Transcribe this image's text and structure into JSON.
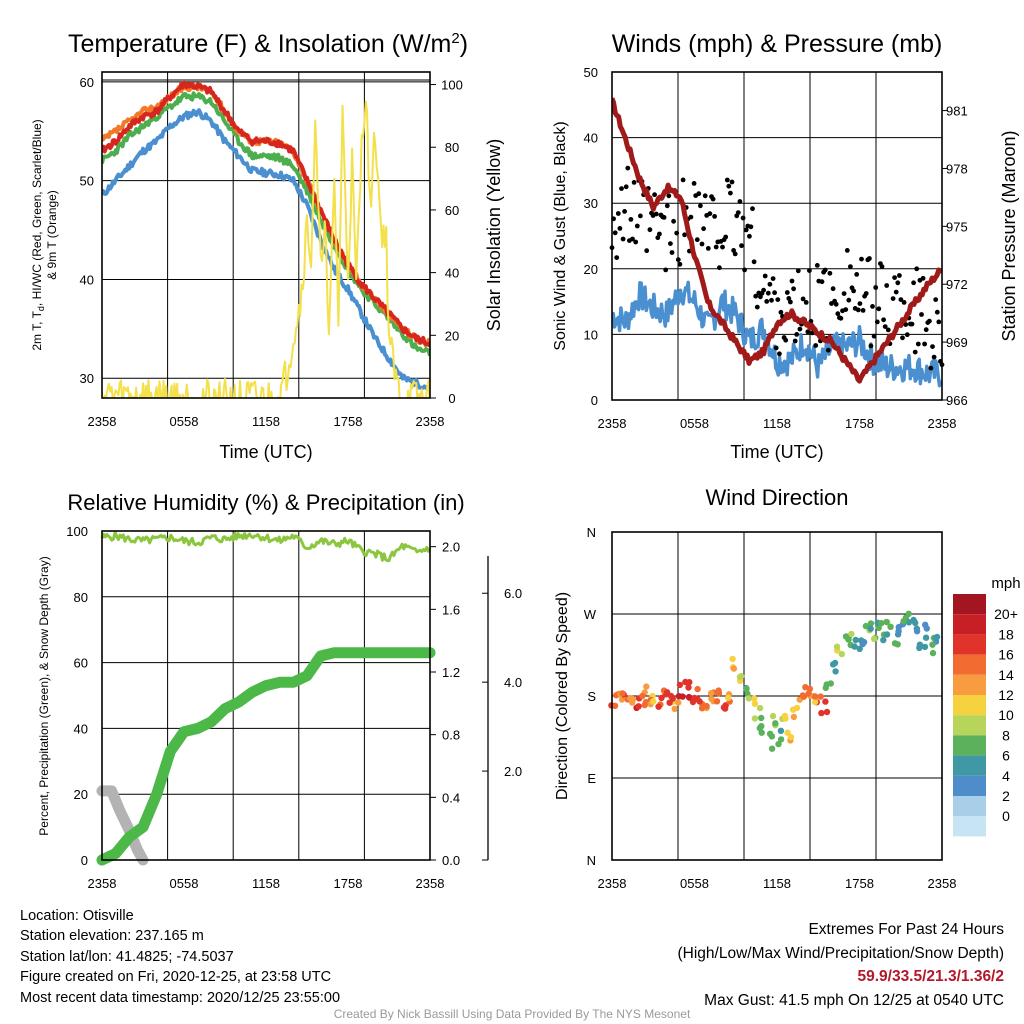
{
  "chart_data": [
    {
      "type": "line",
      "title": "Temperature (F) & Insolation (W/m²)",
      "xlabel": "Time (UTC)",
      "ylabel_lines": [
        "2m T, Tₙ, HI/WC (Red, Green, Scarlet/Blue)",
        "& 9m T (Orange)"
      ],
      "y2label": "Solar Insolation (Yellow)",
      "x_ticks": [
        "2358",
        "0558",
        "1158",
        "1758",
        "2358"
      ],
      "ylim": [
        28,
        61
      ],
      "y_ticks": [
        30,
        40,
        50,
        60
      ],
      "y2lim": [
        0,
        104
      ],
      "y2_ticks": [
        0,
        20,
        40,
        60,
        80,
        100
      ],
      "series": [
        {
          "color": "#4a8fd0",
          "x": [
            0,
            1,
            2,
            3,
            4,
            5,
            6,
            7,
            8,
            9,
            10,
            11,
            12,
            13,
            14,
            15,
            16,
            17,
            18,
            19,
            20,
            21,
            22,
            23,
            24
          ],
          "values": [
            48.5,
            50,
            51.5,
            53,
            54,
            55.5,
            56.5,
            57,
            56,
            54,
            52.5,
            51,
            50.8,
            50.6,
            50,
            47.5,
            44,
            41,
            39,
            36.5,
            34,
            32,
            30,
            29.5,
            29
          ]
        },
        {
          "color": "#4cae4c",
          "x": [
            0,
            1,
            2,
            3,
            4,
            5,
            6,
            7,
            8,
            9,
            10,
            11,
            12,
            13,
            14,
            15,
            16,
            17,
            18,
            19,
            20,
            21,
            22,
            23,
            24
          ],
          "values": [
            52,
            53,
            54.5,
            55.5,
            56.5,
            57.5,
            58.5,
            58.5,
            58,
            56,
            54,
            52.5,
            52.5,
            52.3,
            51.5,
            49,
            46,
            43.5,
            41,
            39,
            37.5,
            36,
            34.5,
            33,
            32.5
          ]
        },
        {
          "color": "#f07a28",
          "x": [
            0,
            1,
            2,
            3,
            4,
            5,
            6,
            7,
            8,
            9,
            10,
            11,
            12,
            13,
            14,
            15,
            16,
            17,
            18,
            19,
            20,
            21,
            22,
            23,
            24
          ],
          "values": [
            54,
            55,
            56,
            57,
            57.5,
            58.5,
            59.5,
            59.5,
            59,
            57,
            55,
            54,
            54,
            53.8,
            53,
            50,
            47,
            44,
            41.5,
            39.5,
            38,
            36.5,
            35,
            34,
            33.5
          ]
        },
        {
          "color": "#d7261e",
          "x": [
            0,
            1,
            2,
            3,
            4,
            5,
            6,
            7,
            8,
            9,
            10,
            11,
            12,
            13,
            14,
            15,
            16,
            17,
            18,
            19,
            20,
            21,
            22,
            23,
            24
          ],
          "values": [
            53,
            54,
            55.5,
            56.5,
            57,
            58.5,
            59.8,
            59.5,
            59,
            57,
            55,
            54,
            54,
            53.8,
            53,
            50,
            47,
            44,
            41.5,
            39.5,
            38,
            36.5,
            35,
            34,
            33.5
          ]
        },
        {
          "color": "#f3e04a",
          "axis": "right",
          "x": [
            0,
            12,
            13,
            13.5,
            14,
            14.5,
            15,
            15.3,
            15.6,
            16,
            16.3,
            16.6,
            17,
            17.3,
            17.6,
            18,
            18.3,
            18.6,
            19,
            19.3,
            19.6,
            20,
            20.4,
            20.8,
            21,
            21.5,
            22,
            24
          ],
          "values": [
            1,
            0,
            0,
            8,
            20,
            30,
            55,
            45,
            85,
            40,
            60,
            15,
            70,
            25,
            90,
            40,
            75,
            35,
            80,
            100,
            60,
            85,
            55,
            50,
            20,
            5,
            0,
            0
          ]
        }
      ]
    },
    {
      "type": "line",
      "title": "Winds (mph) & Pressure (mb)",
      "xlabel": "Time (UTC)",
      "ylabel": "Sonic Wind & Gust (Blue, Black)",
      "y2label": "Station Pressure (Maroon)",
      "x_ticks": [
        "2358",
        "0558",
        "1158",
        "1758",
        "2358"
      ],
      "ylim": [
        0,
        50
      ],
      "y_ticks": [
        0,
        10,
        20,
        30,
        40,
        50
      ],
      "y2lim": [
        966,
        983
      ],
      "y2_ticks": [
        966,
        969,
        972,
        975,
        978,
        981
      ],
      "series": [
        {
          "color": "#4a8fd0",
          "x": [
            0,
            1,
            2,
            3,
            4,
            5,
            6,
            7,
            8,
            9,
            10,
            11,
            12,
            13,
            14,
            15,
            16,
            17,
            18,
            19,
            20,
            21,
            22,
            23,
            24
          ],
          "values": [
            13,
            12,
            16,
            14,
            13,
            17,
            15,
            11,
            15,
            13,
            9,
            11,
            6,
            6,
            9,
            5,
            8,
            8,
            9,
            6,
            5,
            5,
            5,
            4,
            4
          ]
        },
        {
          "color": "#000000",
          "x": [
            0,
            1,
            2,
            3,
            4,
            5,
            6,
            7,
            8,
            9,
            10,
            11,
            12,
            13,
            14,
            15,
            16,
            17,
            18,
            19,
            20,
            21,
            22,
            23,
            24
          ],
          "values": [
            28,
            29,
            27,
            26,
            25,
            27,
            30,
            25,
            27,
            27,
            25,
            16,
            14,
            13,
            13,
            15,
            13,
            20,
            15,
            15,
            14,
            15,
            14,
            12,
            10
          ]
        },
        {
          "color": "#a11a1a",
          "axis": "right",
          "x": [
            0,
            1,
            2,
            3,
            4,
            5,
            6,
            7,
            8,
            9,
            10,
            11,
            12,
            13,
            14,
            15,
            16,
            17,
            18,
            19,
            20,
            21,
            22,
            23,
            24
          ],
          "values": [
            981.5,
            979.5,
            977.5,
            976,
            977,
            976.5,
            973.5,
            971,
            970,
            969,
            968,
            968.5,
            970,
            970.5,
            970,
            969.5,
            969,
            968,
            967,
            968,
            969,
            970,
            971,
            972,
            972.8
          ]
        }
      ]
    },
    {
      "type": "line",
      "title": "Relative Humidity (%) & Precipitation (in)",
      "ylabel": "Percent, Precipitation (Green), & Snow Depth (Gray)",
      "x_ticks": [
        "2358",
        "0558",
        "1158",
        "1758",
        "2358"
      ],
      "ylim": [
        0,
        100
      ],
      "y_ticks": [
        0,
        20,
        40,
        60,
        80,
        100
      ],
      "y2lim": [
        0,
        2.1
      ],
      "y2_ticks": [
        "0.0",
        "0.4",
        "0.8",
        "1.2",
        "1.6",
        "2.0"
      ],
      "y3_ticks": [
        "2.0",
        "4.0",
        "6.0"
      ],
      "series": [
        {
          "color": "#8cc63f",
          "x": [
            0,
            1,
            2,
            3,
            4,
            5,
            6,
            7,
            8,
            9,
            10,
            11,
            12,
            13,
            14,
            15,
            16,
            17,
            18,
            19,
            20,
            21,
            22,
            23,
            24
          ],
          "values": [
            98,
            98.5,
            97.5,
            97,
            97.5,
            98,
            97,
            96.5,
            98,
            97.5,
            98.5,
            99,
            98,
            97,
            98.5,
            95,
            97,
            96,
            97,
            94,
            93,
            91.5,
            95.5,
            93.5,
            95
          ]
        },
        {
          "color": "#4cb848",
          "x": [
            0,
            1,
            2,
            3,
            4,
            5,
            6,
            7,
            8,
            9,
            10,
            11,
            12,
            13,
            14,
            15,
            16,
            17,
            18,
            19,
            20,
            21,
            22,
            23,
            24
          ],
          "values": [
            0,
            2,
            7,
            10,
            20,
            33,
            39,
            40,
            42,
            46,
            48,
            51,
            53,
            54,
            54,
            56,
            62,
            63,
            63,
            63,
            63,
            63,
            63,
            63,
            63
          ]
        },
        {
          "color": "#b3b3b3",
          "x": [
            0,
            0.7,
            1.3,
            2.0,
            2.6,
            3.0
          ],
          "values": [
            21,
            21,
            15,
            9,
            3,
            0
          ]
        }
      ]
    },
    {
      "type": "scatter",
      "title": "Wind Direction",
      "ylabel": "Direction (Colored By Speed)",
      "x_ticks": [
        "2358",
        "0558",
        "1158",
        "1758",
        "2358"
      ],
      "y_ticks": [
        "N",
        "E",
        "S",
        "W",
        "N"
      ],
      "legend_title": "mph",
      "legend_labels": [
        "20+",
        "18",
        "16",
        "14",
        "12",
        "10",
        "8",
        "6",
        "4",
        "2",
        "0"
      ],
      "legend_colors": [
        "#a31621",
        "#c62026",
        "#e0342b",
        "#f26b30",
        "#f89d3f",
        "#f6d140",
        "#b6d55a",
        "#5cb25c",
        "#3f98a3",
        "#4e8dc9",
        "#a9cfe8",
        "#c6e4f4"
      ],
      "points_x": [
        0.2,
        0.6,
        1.0,
        1.4,
        1.8,
        2.2,
        2.6,
        3.0,
        3.4,
        3.8,
        4.2,
        4.6,
        5.0,
        5.4,
        5.8,
        6.2,
        6.6,
        7.0,
        7.4,
        7.8,
        8.2,
        8.6,
        9.0,
        9.4,
        9.8,
        10.2,
        10.6,
        11.0,
        11.4,
        11.8,
        12.2,
        12.6,
        13.0,
        13.4,
        13.8,
        14.2,
        14.6,
        15.0,
        15.4,
        15.8,
        16.2,
        16.6,
        17.0,
        17.4,
        17.8,
        18.2,
        18.6,
        19.0,
        19.4,
        19.8,
        20.2,
        20.6,
        21.0,
        21.4,
        21.8,
        22.2,
        22.6,
        23.0,
        23.4,
        23.8
      ],
      "points_deg": [
        178,
        175,
        180,
        176,
        172,
        178,
        182,
        175,
        170,
        178,
        176,
        165,
        185,
        188,
        180,
        182,
        170,
        175,
        180,
        178,
        172,
        176,
        215,
        205,
        190,
        170,
        160,
        140,
        130,
        150,
        135,
        150,
        140,
        165,
        175,
        185,
        178,
        172,
        170,
        195,
        215,
        230,
        250,
        240,
        235,
        245,
        260,
        250,
        255,
        240,
        255,
        245,
        250,
        260,
        265,
        255,
        240,
        250,
        235,
        245
      ],
      "points_speed": [
        14,
        13,
        15,
        12,
        16,
        14,
        13,
        11,
        16,
        15,
        17,
        12,
        18,
        16,
        17,
        15,
        16,
        14,
        13,
        15,
        16,
        12,
        10,
        8,
        6,
        9,
        8,
        6,
        5,
        7,
        6,
        9,
        11,
        10,
        13,
        14,
        12,
        15,
        16,
        6,
        4,
        8,
        5,
        6,
        4,
        3,
        7,
        6,
        5,
        4,
        6,
        5,
        3,
        5,
        4,
        3,
        4,
        2,
        5,
        3
      ]
    }
  ],
  "labels": {
    "time_utc": "Time (UTC)",
    "y1": "2m T, T",
    "y1_sub": "d",
    "y1_rest": ", HI/WC (Red, Green, Scarlet/Blue)",
    "y1_line2": "& 9m T (Orange)",
    "t1_main": "Temperature (F) & Insolation (W/m",
    "t1_sup": "2",
    "t1_close": ")"
  },
  "info": {
    "location": "Location: Otisville",
    "elevation": "Station elevation: 237.165 m",
    "latlon": "Station lat/lon: 41.4825; -74.5037",
    "created": "Figure created on Fri, 2020-12-25, at 23:58 UTC",
    "recent": "Most recent data timestamp: 2020/12/25 23:55:00"
  },
  "extremes": {
    "title": "Extremes For Past 24 Hours",
    "subtitle": "(High/Low/Max Wind/Precipitation/Snow Depth)",
    "values": "59.9/33.5/21.3/1.36/2",
    "gust": "Max Gust: 41.5 mph On 12/25 at 0540 UTC"
  },
  "credit": "Created By Nick Bassill Using Data Provided By The NYS Mesonet"
}
